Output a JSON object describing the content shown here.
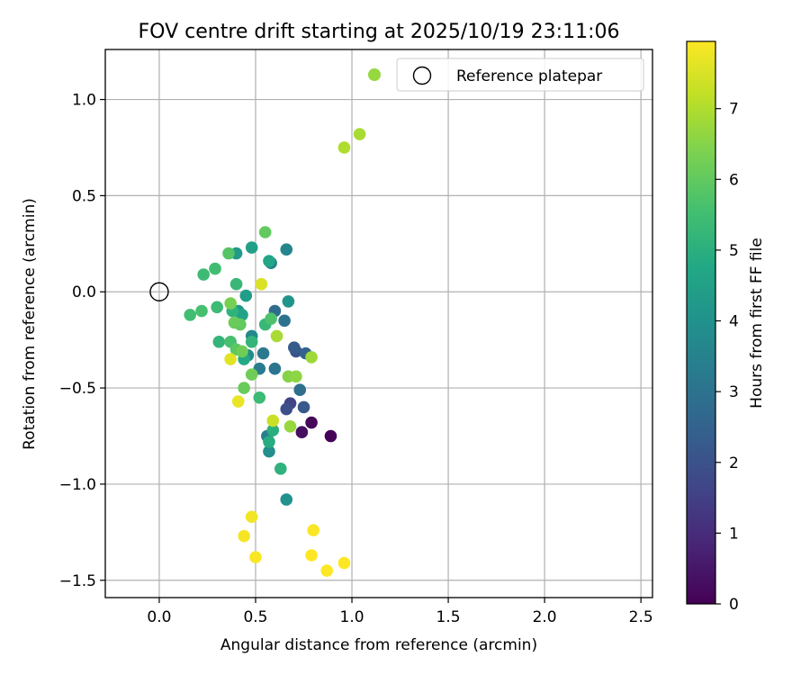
{
  "chart_data": {
    "type": "scatter",
    "title": "FOV centre drift starting at 2025/10/19 23:11:06",
    "xlabel": "Angular distance from reference (arcmin)",
    "ylabel": "Rotation from reference (arcmin)",
    "xlim": [
      -0.28,
      2.56
    ],
    "ylim": [
      -1.59,
      1.26
    ],
    "xticks": [
      0.0,
      0.5,
      1.0,
      1.5,
      2.0,
      2.5
    ],
    "xtick_labels": [
      "0.0",
      "0.5",
      "1.0",
      "1.5",
      "2.0",
      "2.5"
    ],
    "yticks": [
      -1.5,
      -1.0,
      -0.5,
      0.0,
      0.5,
      1.0
    ],
    "ytick_labels": [
      "−1.5",
      "−1.0",
      "−0.5",
      "0.0",
      "0.5",
      "1.0"
    ],
    "grid": true,
    "colorbar": {
      "label": "Hours from first FF file",
      "range": [
        0,
        7.95
      ],
      "ticks": [
        0,
        1,
        2,
        3,
        4,
        5,
        6,
        7
      ],
      "tick_labels": [
        "0",
        "1",
        "2",
        "3",
        "4",
        "5",
        "6",
        "7"
      ],
      "colormap": "viridis"
    },
    "legend": {
      "placement": "top-right",
      "entries": [
        {
          "label": "",
          "marker": "filled-circle",
          "color": "#95d840"
        },
        {
          "label": "Reference platepar",
          "marker": "open-circle",
          "color": "#000000"
        }
      ]
    },
    "reference_point": {
      "x": 0.0,
      "y": 0.0
    },
    "points": [
      {
        "x": 0.89,
        "y": -0.75,
        "t": 0.05
      },
      {
        "x": 0.79,
        "y": -0.68,
        "t": 0.15
      },
      {
        "x": 0.74,
        "y": -0.73,
        "t": 0.3
      },
      {
        "x": 0.68,
        "y": -0.58,
        "t": 1.6
      },
      {
        "x": 0.66,
        "y": -0.61,
        "t": 1.9
      },
      {
        "x": 0.75,
        "y": -0.6,
        "t": 2.2
      },
      {
        "x": 0.71,
        "y": -0.31,
        "t": 2.0
      },
      {
        "x": 0.7,
        "y": -0.29,
        "t": 2.3
      },
      {
        "x": 0.76,
        "y": -0.32,
        "t": 2.5
      },
      {
        "x": 0.73,
        "y": -0.51,
        "t": 2.9
      },
      {
        "x": 0.6,
        "y": -0.1,
        "t": 2.8
      },
      {
        "x": 0.65,
        "y": -0.15,
        "t": 3.0
      },
      {
        "x": 0.6,
        "y": -0.4,
        "t": 3.1
      },
      {
        "x": 0.54,
        "y": -0.32,
        "t": 3.2
      },
      {
        "x": 0.52,
        "y": -0.4,
        "t": 3.3
      },
      {
        "x": 0.56,
        "y": -0.75,
        "t": 3.4
      },
      {
        "x": 0.58,
        "y": 0.15,
        "t": 3.5
      },
      {
        "x": 0.66,
        "y": 0.22,
        "t": 3.6
      },
      {
        "x": 0.48,
        "y": -0.23,
        "t": 3.7
      },
      {
        "x": 0.46,
        "y": -0.33,
        "t": 3.8
      },
      {
        "x": 0.57,
        "y": -0.83,
        "t": 3.9
      },
      {
        "x": 0.66,
        "y": -1.08,
        "t": 4.0
      },
      {
        "x": 0.67,
        "y": -0.05,
        "t": 4.1
      },
      {
        "x": 0.41,
        "y": -0.1,
        "t": 4.2
      },
      {
        "x": 0.4,
        "y": 0.2,
        "t": 4.3
      },
      {
        "x": 0.45,
        "y": -0.02,
        "t": 4.4
      },
      {
        "x": 0.48,
        "y": 0.23,
        "t": 4.5
      },
      {
        "x": 0.43,
        "y": -0.12,
        "t": 4.6
      },
      {
        "x": 0.57,
        "y": 0.16,
        "t": 4.7
      },
      {
        "x": 0.44,
        "y": -0.35,
        "t": 4.8
      },
      {
        "x": 0.57,
        "y": -0.78,
        "t": 4.9
      },
      {
        "x": 0.59,
        "y": -0.72,
        "t": 5.0
      },
      {
        "x": 0.63,
        "y": -0.92,
        "t": 5.1
      },
      {
        "x": 0.48,
        "y": -0.26,
        "t": 5.2
      },
      {
        "x": 0.55,
        "y": -0.17,
        "t": 5.3
      },
      {
        "x": 0.52,
        "y": -0.55,
        "t": 5.4
      },
      {
        "x": 0.38,
        "y": -0.1,
        "t": 5.1
      },
      {
        "x": 0.31,
        "y": -0.26,
        "t": 5.2
      },
      {
        "x": 0.4,
        "y": 0.04,
        "t": 5.3
      },
      {
        "x": 0.3,
        "y": -0.08,
        "t": 5.4
      },
      {
        "x": 0.23,
        "y": 0.09,
        "t": 5.4
      },
      {
        "x": 0.29,
        "y": 0.12,
        "t": 5.5
      },
      {
        "x": 0.16,
        "y": -0.12,
        "t": 5.5
      },
      {
        "x": 0.22,
        "y": -0.1,
        "t": 5.6
      },
      {
        "x": 0.37,
        "y": -0.26,
        "t": 5.6
      },
      {
        "x": 0.58,
        "y": -0.14,
        "t": 5.7
      },
      {
        "x": 0.36,
        "y": 0.2,
        "t": 5.8
      },
      {
        "x": 0.4,
        "y": -0.3,
        "t": 5.9
      },
      {
        "x": 0.42,
        "y": -0.17,
        "t": 6.0
      },
      {
        "x": 0.44,
        "y": -0.5,
        "t": 6.1
      },
      {
        "x": 0.48,
        "y": -0.43,
        "t": 6.2
      },
      {
        "x": 0.39,
        "y": -0.16,
        "t": 6.1
      },
      {
        "x": 0.43,
        "y": -0.31,
        "t": 6.2
      },
      {
        "x": 0.37,
        "y": -0.06,
        "t": 6.3
      },
      {
        "x": 0.55,
        "y": 0.31,
        "t": 6.0
      },
      {
        "x": 0.67,
        "y": -0.44,
        "t": 6.5
      },
      {
        "x": 0.71,
        "y": -0.44,
        "t": 6.6
      },
      {
        "x": 0.68,
        "y": -0.7,
        "t": 6.7
      },
      {
        "x": 0.79,
        "y": -0.34,
        "t": 6.8
      },
      {
        "x": 0.61,
        "y": -0.23,
        "t": 6.9
      },
      {
        "x": 0.96,
        "y": 0.75,
        "t": 7.0
      },
      {
        "x": 1.04,
        "y": 0.82,
        "t": 6.9
      },
      {
        "x": 0.59,
        "y": -0.67,
        "t": 7.3
      },
      {
        "x": 0.53,
        "y": 0.04,
        "t": 7.5
      },
      {
        "x": 0.37,
        "y": -0.35,
        "t": 7.6
      },
      {
        "x": 0.41,
        "y": -0.57,
        "t": 7.7
      },
      {
        "x": 0.48,
        "y": -1.17,
        "t": 7.8
      },
      {
        "x": 0.44,
        "y": -1.27,
        "t": 7.85
      },
      {
        "x": 0.5,
        "y": -1.38,
        "t": 7.9
      },
      {
        "x": 0.8,
        "y": -1.24,
        "t": 7.9
      },
      {
        "x": 0.79,
        "y": -1.37,
        "t": 7.95
      },
      {
        "x": 0.87,
        "y": -1.45,
        "t": 7.95
      },
      {
        "x": 0.96,
        "y": -1.41,
        "t": 7.95
      }
    ]
  }
}
